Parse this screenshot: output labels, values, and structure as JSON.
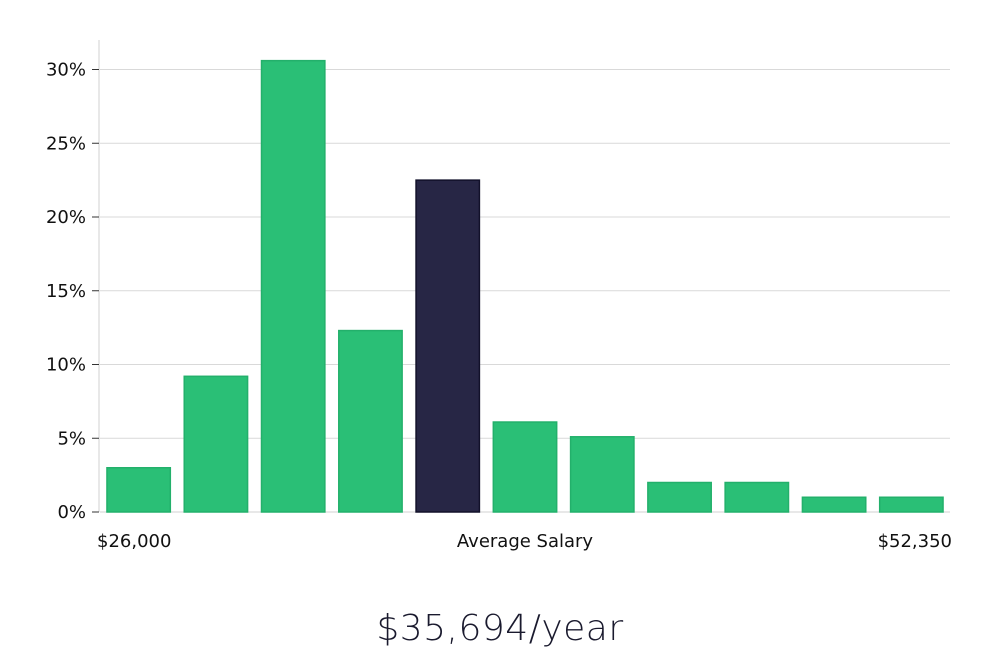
{
  "chart_data": {
    "type": "bar",
    "title": "",
    "categories": [
      "$26,000",
      "",
      "",
      "",
      "Average Salary",
      "",
      "",
      "",
      "",
      "",
      "$52,350"
    ],
    "values": [
      3,
      9.2,
      30.6,
      12.3,
      22.5,
      6.1,
      5.1,
      2.0,
      2.0,
      1.0,
      1.0
    ],
    "highlight_index": 4,
    "ylim": [
      0,
      32
    ],
    "yticks": [
      0,
      5,
      10,
      15,
      20,
      25,
      30
    ],
    "ytick_labels": [
      "0%",
      "5%",
      "10%",
      "15%",
      "20%",
      "25%",
      "30%"
    ],
    "x_labels": {
      "left": "$26,000",
      "center": "Average Salary",
      "right": "$52,350"
    },
    "colors": {
      "bar": "#2abf76",
      "bar_stroke": "#23b06b",
      "highlight": "#272645",
      "highlight_stroke": "#12112a"
    },
    "grid": true
  },
  "summary": {
    "salary_text": "$35,694/year"
  }
}
